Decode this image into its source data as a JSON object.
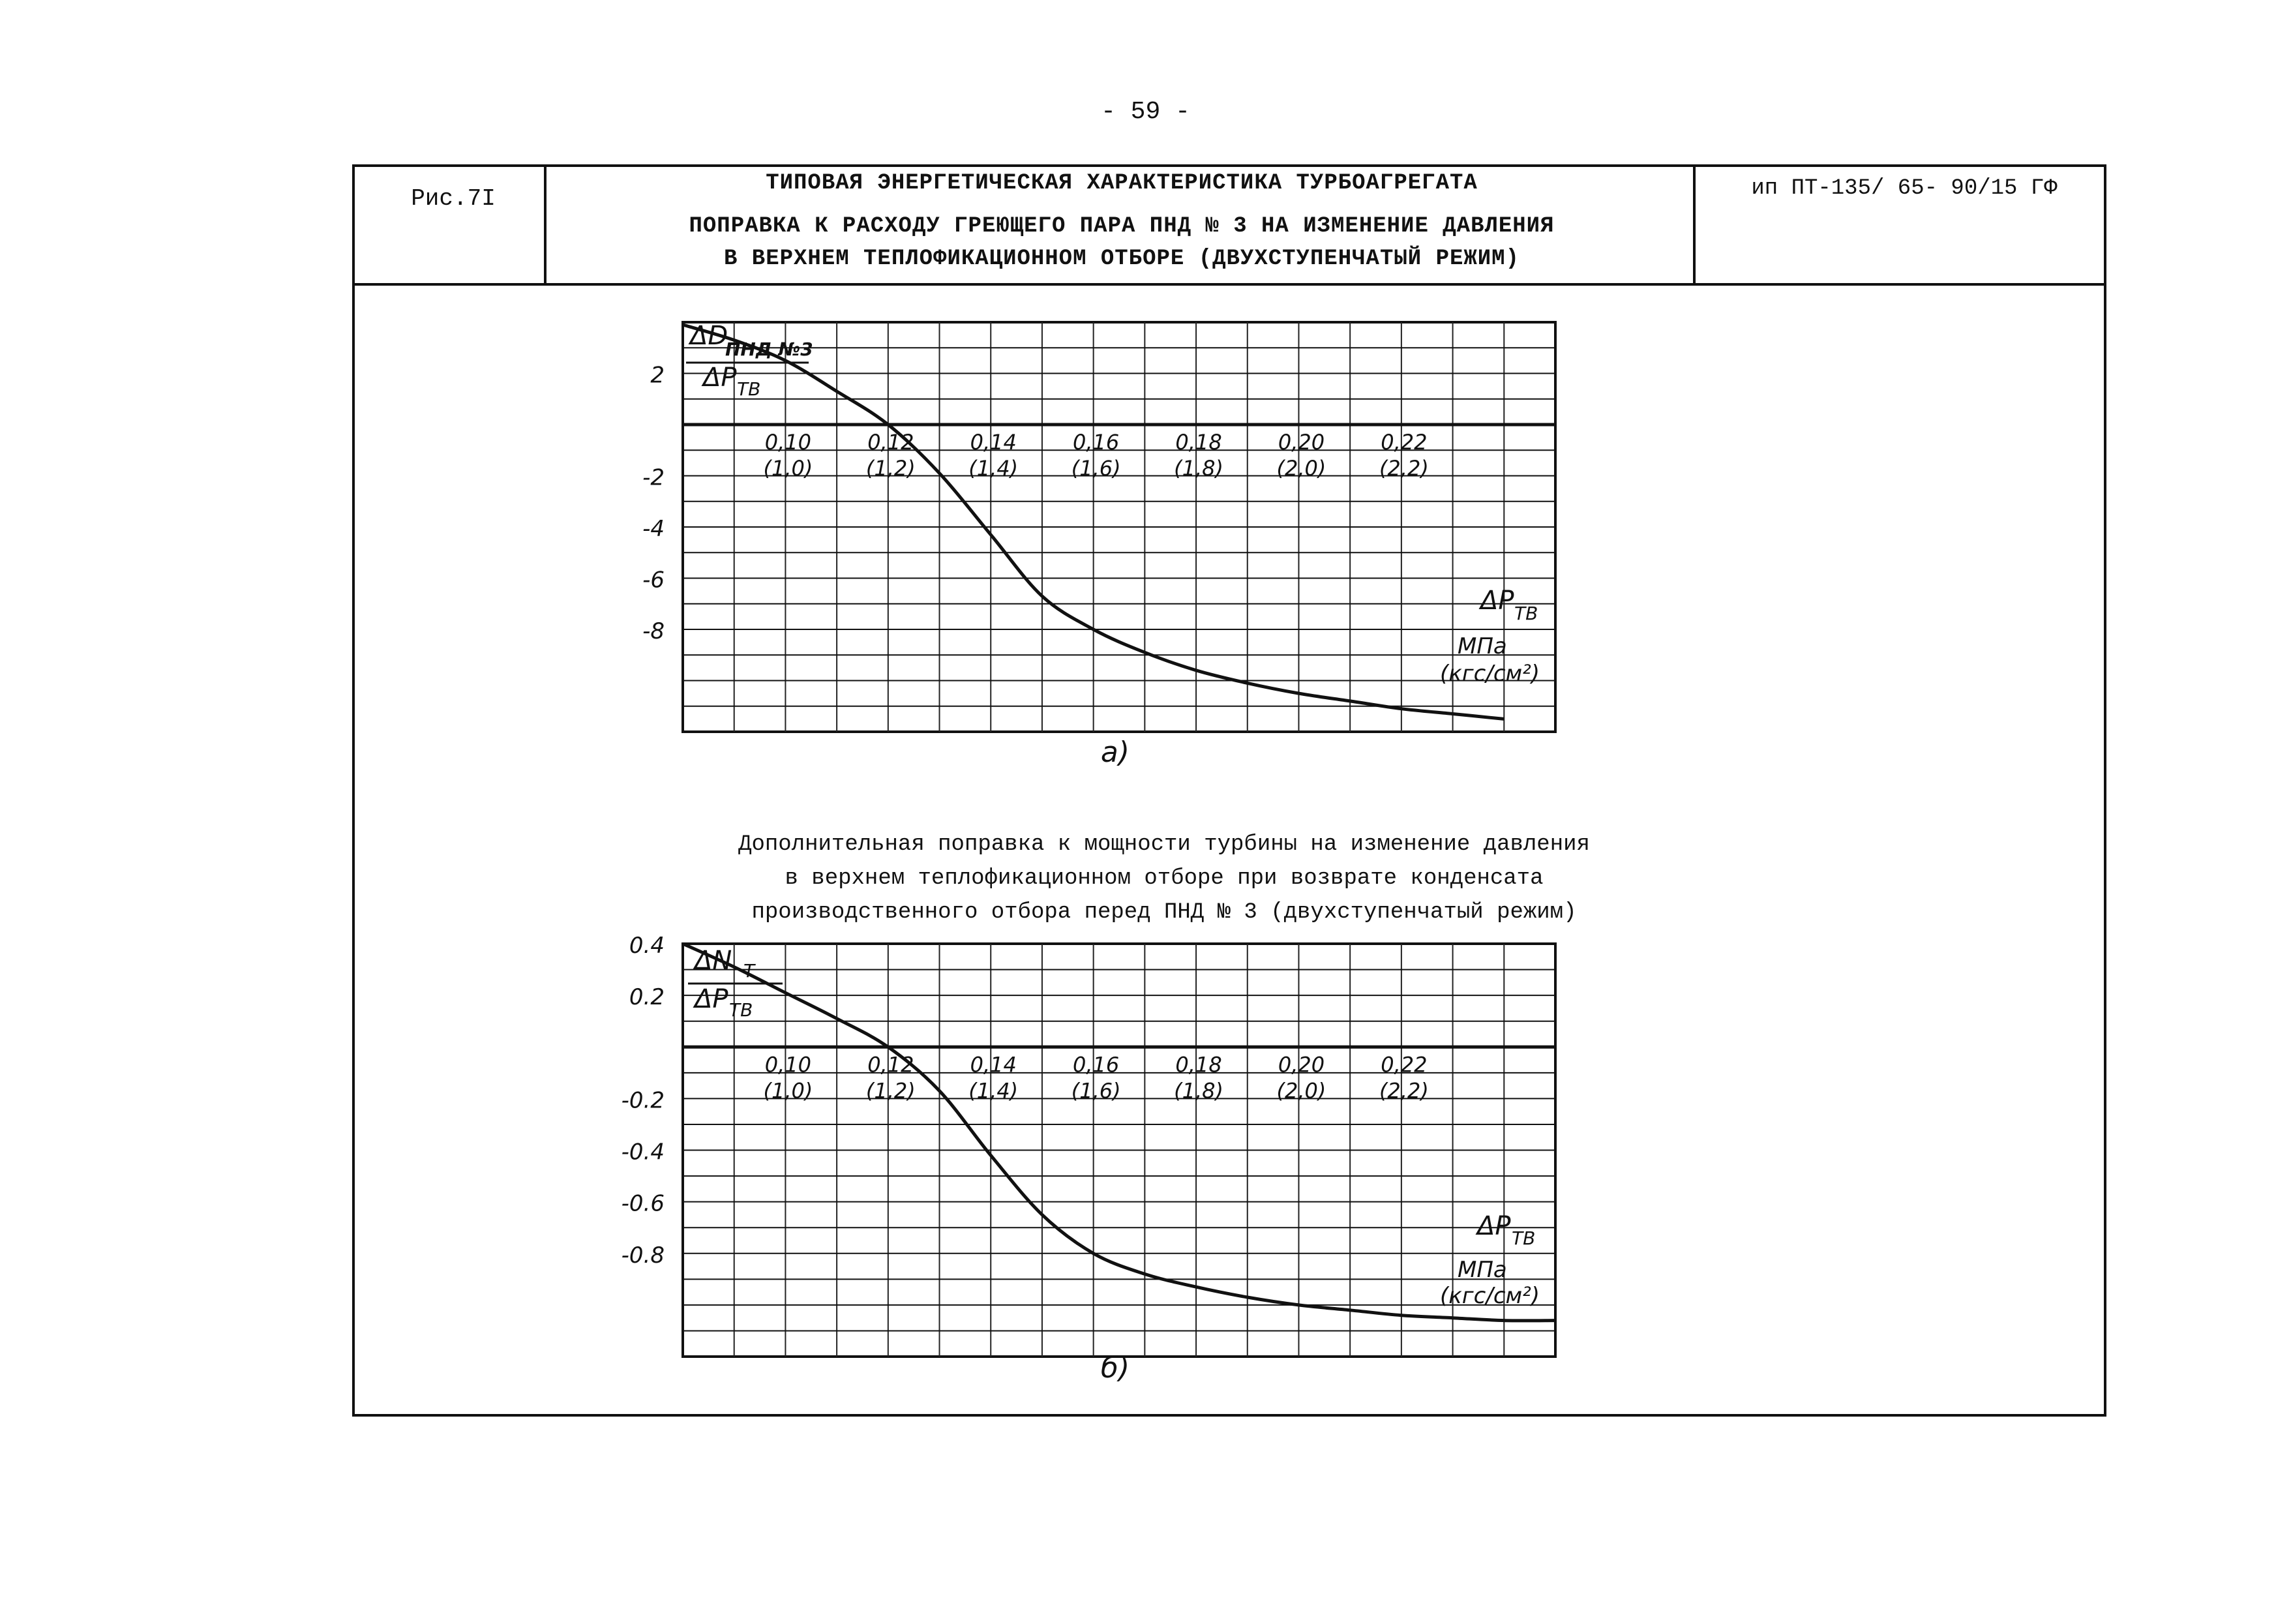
{
  "page": {
    "number": "- 59 -"
  },
  "header": {
    "figure": "Рис.7I",
    "title": "ТИПОВАЯ ЭНЕРГЕТИЧЕСКАЯ ХАРАКТЕРИСТИКА ТУРБОАГРЕГАТА",
    "subtitle_line1": "ПОПРАВКА К РАСХОДУ ГРЕЮЩЕГО ПАРА ПНД № 3 НА ИЗМЕНЕНИЕ ДАВЛЕНИЯ",
    "subtitle_line2": "В ВЕРХНЕМ ТЕПЛОФИКАЦИОННОМ ОТБОРЕ (ДВУХСТУПЕНЧАТЫЙ РЕЖИМ)",
    "doc_code": "ип ПТ-135/ 65- 90/15 ГФ"
  },
  "caption_b": {
    "line1": "Дополнительная поправка к мощности турбины на изменение давления",
    "line2": "в верхнем теплофикационном отборе при возврате конденсата",
    "line3": "производственного отбора перед ПНД № 3 (двухступенчатый режим)"
  },
  "chart_data": [
    {
      "type": "line",
      "panel_label": "а)",
      "ylabel_top": "ΔD",
      "ylabel_top_sub": "ПНД №3",
      "ylabel_bottom": "ΔP",
      "ylabel_bottom_sub": "ТВ",
      "xlabel": "ΔP",
      "xlabel_sub": "ТВ",
      "x_ticks": [
        "0,10",
        "0,12",
        "0,14",
        "0,16",
        "0,18",
        "0,20",
        "0,22"
      ],
      "x_ticks_alt": [
        "(1,0)",
        "(1,2)",
        "(1,4)",
        "(1,6)",
        "(1,8)",
        "(2,0)",
        "(2,2)"
      ],
      "x_unit": "МПа",
      "x_unit_alt": "(кгс/см²)",
      "y_ticks": [
        "-8",
        "-6",
        "-4",
        "-2",
        "2"
      ],
      "xlim": [
        0.08,
        0.25
      ],
      "ylim": [
        4,
        -12
      ],
      "x": [
        0.08,
        0.09,
        0.1,
        0.11,
        0.12,
        0.13,
        0.14,
        0.15,
        0.16,
        0.17,
        0.18,
        0.19,
        0.2,
        0.21,
        0.22,
        0.23,
        0.24
      ],
      "y": [
        3.9,
        3.3,
        2.5,
        1.3,
        0.0,
        -1.9,
        -4.3,
        -6.7,
        -8.0,
        -8.9,
        -9.6,
        -10.1,
        -10.5,
        -10.8,
        -11.1,
        -11.3,
        -11.5
      ]
    },
    {
      "type": "line",
      "panel_label": "б)",
      "ylabel_top": "ΔN",
      "ylabel_top_sub": "Т",
      "ylabel_bottom": "ΔP",
      "ylabel_bottom_sub": "ТВ",
      "xlabel": "ΔP",
      "xlabel_sub": "ТВ",
      "x_ticks": [
        "0,10",
        "0,12",
        "0,14",
        "0,16",
        "0,18",
        "0,20",
        "0,22"
      ],
      "x_ticks_alt": [
        "(1,0)",
        "(1,2)",
        "(1,4)",
        "(1,6)",
        "(1,8)",
        "(2,0)",
        "(2,2)"
      ],
      "x_unit": "МПа",
      "x_unit_alt": "(кгс/см²)",
      "y_ticks": [
        "-0.8",
        "-0.6",
        "-0.4",
        "-0.2",
        "0.2",
        "0.4"
      ],
      "xlim": [
        0.08,
        0.25
      ],
      "ylim": [
        0.4,
        -1.2
      ],
      "x": [
        0.08,
        0.09,
        0.1,
        0.11,
        0.12,
        0.13,
        0.14,
        0.15,
        0.16,
        0.17,
        0.18,
        0.19,
        0.2,
        0.21,
        0.22,
        0.23,
        0.24,
        0.25
      ],
      "y": [
        0.4,
        0.31,
        0.21,
        0.11,
        0.0,
        -0.17,
        -0.42,
        -0.65,
        -0.8,
        -0.88,
        -0.93,
        -0.97,
        -1.0,
        -1.02,
        -1.04,
        -1.05,
        -1.06,
        -1.06
      ]
    }
  ]
}
